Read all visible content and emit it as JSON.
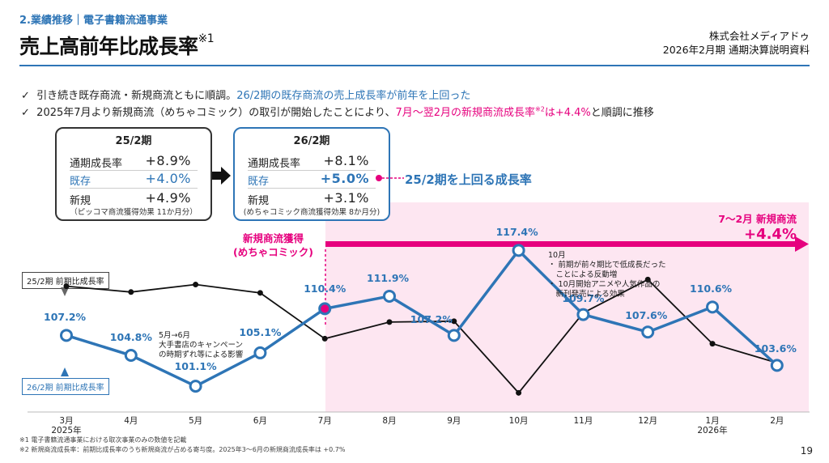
{
  "header": {
    "section": "2.業績推移｜電子書籍流通事業",
    "title": "売上高前年比成長率",
    "title_sup": "※1",
    "company": "株式会社メディアドゥ",
    "doc": "2026年2月期 通期決算説明資料"
  },
  "bullets": [
    {
      "check": "✓",
      "text": "引き続き既存商流・新規商流ともに順調。",
      "blue": "26/2期の既存商流の売上成長率が前年を上回った"
    },
    {
      "check": "✓",
      "text": "2025年7月より新規商流（めちゃコミック）の取引が開始したことにより、",
      "pink": "7月〜翌2月の新規商流成長率",
      "sup": "※2",
      "pink2": "は+4.4%",
      "tail": "と順調に推移"
    }
  ],
  "box_prev": {
    "title": "25/2期",
    "rows": [
      {
        "label": "通期成長率",
        "value": "+8.9%"
      },
      {
        "label": "既存",
        "value": "+4.0%"
      },
      {
        "label": "新規",
        "value": "+4.9%"
      }
    ],
    "note": "（ピッコマ商流獲得効果 11か月分）"
  },
  "box_curr": {
    "title": "26/2期",
    "rows": [
      {
        "label": "通期成長率",
        "value": "+8.1%"
      },
      {
        "label": "既存",
        "value": "+5.0%"
      },
      {
        "label": "新規",
        "value": "+3.1%"
      }
    ],
    "note": "(めちゃコミック商流獲得効果 8か月分)"
  },
  "callout": "25/2期を上回る成長率",
  "pink_range": {
    "line1": "7〜2月 新規商流",
    "line2": "+4.4%"
  },
  "new_deal": {
    "line1": "新規商流獲得",
    "line2": "(めちゃコミック)"
  },
  "legend_prev": "25/2期 前期比成長率",
  "legend_curr": "26/2期 前期比成長率",
  "annotation_may": [
    "5月→6月",
    "大手書店のキャンペーン",
    "の時期ずれ等による影響"
  ],
  "annotation_oct": [
    "10月",
    "・ 前期が前々期比で低成長だった",
    "　ことによる反動増",
    "・ 10月開始アニメや人気作品の",
    "　新刊発売による効果"
  ],
  "chart_data": {
    "type": "line",
    "categories": [
      "3月",
      "4月",
      "5月",
      "6月",
      "7月",
      "8月",
      "9月",
      "10月",
      "11月",
      "12月",
      "1月",
      "2月"
    ],
    "year_labels": {
      "3月": "2025年",
      "1月": "2026年"
    },
    "series": [
      {
        "name": "26/2期 前期比成長率",
        "color": "#2e75b6",
        "values": [
          107.2,
          104.8,
          101.1,
          105.1,
          110.4,
          111.9,
          107.2,
          117.4,
          109.7,
          107.6,
          110.6,
          103.6
        ],
        "labels": [
          "107.2%",
          "104.8%",
          "101.1%",
          "105.1%",
          "110.4%",
          "111.9%",
          "107.2%",
          "117.4%",
          "109.7%",
          "107.6%",
          "110.6%",
          "103.6%"
        ]
      },
      {
        "name": "25/2期 前期比成長率",
        "color": "#111111",
        "values": [
          113.1,
          112.4,
          113.3,
          112.3,
          106.8,
          108.8,
          108.9,
          100.3,
          109.9,
          113.9,
          106.2,
          103.9
        ]
      }
    ],
    "highlight_index": 4,
    "ylim": [
      98,
      122
    ]
  },
  "footnotes": [
    "※1 電子書籍流通事業における取次事業のみの数値を記載",
    "※2 新規商流成長率：前期比成長率のうち新規商流が占める寄与度。2025年3〜6月の新規商流成長率は +0.7%"
  ],
  "page_number": "19"
}
